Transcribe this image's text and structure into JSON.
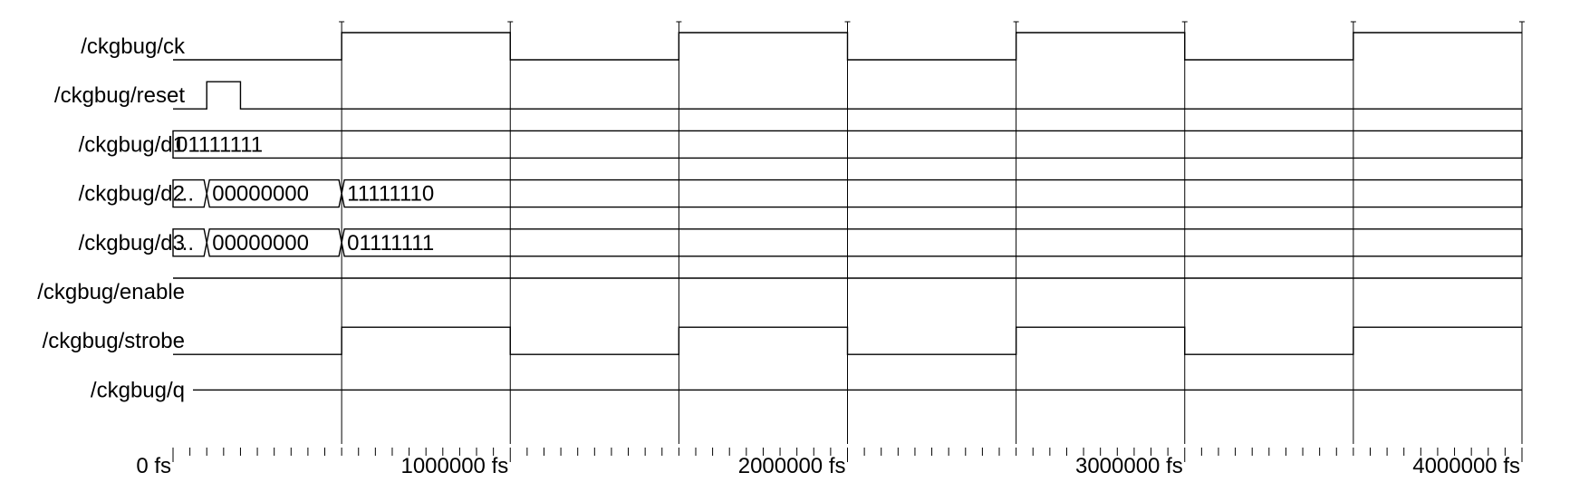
{
  "viewer": {
    "time_unit": "fs",
    "time_range": [
      0,
      4000000
    ],
    "clock_period": 1000000,
    "major_tick_step": 1000000,
    "minor_tick_step": 50000,
    "colors": {
      "background": "#ffffff",
      "trace": "#000000",
      "grid": "#000000"
    },
    "ruler_labels": [
      {
        "t": 0,
        "label": "0 fs"
      },
      {
        "t": 1000000,
        "label": "1000000 fs"
      },
      {
        "t": 2000000,
        "label": "2000000 fs"
      },
      {
        "t": 3000000,
        "label": "3000000 fs"
      },
      {
        "t": 4000000,
        "label": "4000000 fs"
      }
    ]
  },
  "signals": [
    {
      "name": "/ckgbug/ck",
      "kind": "bit",
      "initial": 0,
      "transitions": [
        [
          500000,
          1
        ],
        [
          1000000,
          0
        ],
        [
          1500000,
          1
        ],
        [
          2000000,
          0
        ],
        [
          2500000,
          1
        ],
        [
          3000000,
          0
        ],
        [
          3500000,
          1
        ]
      ]
    },
    {
      "name": "/ckgbug/reset",
      "kind": "bit",
      "initial": 0,
      "transitions": [
        [
          100000,
          1
        ],
        [
          200000,
          0
        ]
      ]
    },
    {
      "name": "/ckgbug/d1",
      "kind": "bus",
      "segments": [
        {
          "start": 0,
          "end": 4000000,
          "value": "01111111"
        }
      ]
    },
    {
      "name": "/ckgbug/d2",
      "kind": "bus",
      "segments": [
        {
          "start": 0,
          "end": 100000,
          "value": "..."
        },
        {
          "start": 100000,
          "end": 500000,
          "value": "00000000"
        },
        {
          "start": 500000,
          "end": 4000000,
          "value": "11111110"
        }
      ]
    },
    {
      "name": "/ckgbug/d3",
      "kind": "bus",
      "segments": [
        {
          "start": 0,
          "end": 100000,
          "value": "..."
        },
        {
          "start": 100000,
          "end": 500000,
          "value": "00000000"
        },
        {
          "start": 500000,
          "end": 4000000,
          "value": "01111111"
        }
      ]
    },
    {
      "name": "/ckgbug/enable",
      "kind": "bit",
      "initial": 1,
      "transitions": []
    },
    {
      "name": "/ckgbug/strobe",
      "kind": "bit",
      "initial": 0,
      "transitions": [
        [
          500000,
          1
        ],
        [
          1000000,
          0
        ],
        [
          1500000,
          1
        ],
        [
          2000000,
          0
        ],
        [
          2500000,
          1
        ],
        [
          3000000,
          0
        ],
        [
          3500000,
          1
        ]
      ]
    },
    {
      "name": "/ckgbug/q",
      "kind": "bit",
      "initial": "mid",
      "transitions": []
    }
  ]
}
